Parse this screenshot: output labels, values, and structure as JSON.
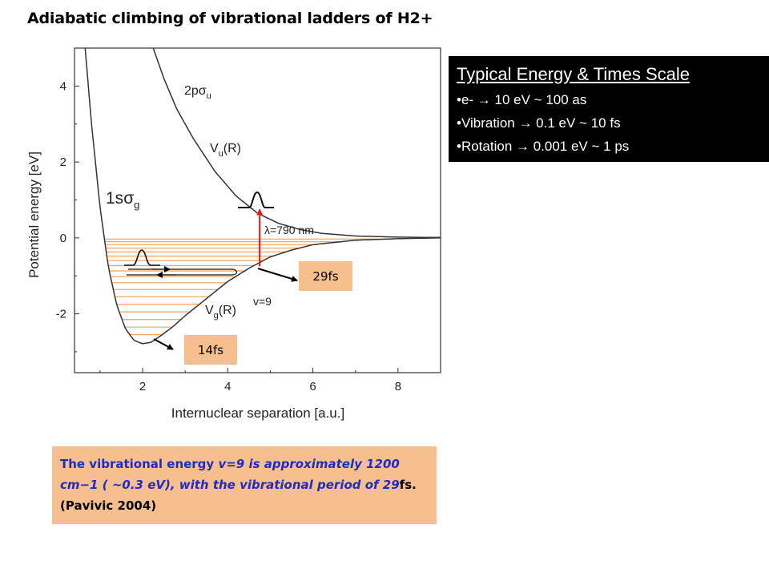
{
  "slide": {
    "title": "Adiabatic climbing of vibrational ladders of H2+"
  },
  "scale_box": {
    "heading": "Typical Energy & Times Scale",
    "items": [
      "•e-  → 10 eV ~ 100 as",
      "•Vibration  → 0.1 eV ~ 10 fs",
      "•Rotation  → 0.001 eV ~ 1 ps"
    ]
  },
  "tags": {
    "t29": "29fs",
    "t14": "14fs"
  },
  "note": {
    "p1": "The vibrational energy ",
    "p2": "v=9 is approximately 1200 cm−1 ( ~0.3 eV), with the vibrational period of 29",
    "p3": "fs. (Pavivic 2004)"
  },
  "chart_data": {
    "type": "line",
    "xlabel": "Internuclear separation [a.u.]",
    "ylabel": "Potential energy [eV]",
    "xlim": [
      0.4,
      9.0
    ],
    "ylim": [
      -3.55,
      5.0
    ],
    "x_ticks": [
      "2",
      "4",
      "6",
      "8"
    ],
    "y_ticks": [
      "-2",
      "0",
      "2",
      "4"
    ],
    "grid": false,
    "series": [
      {
        "name": "Vg(R)",
        "label_main": "V",
        "label_sub": "g",
        "label_tail": "(R)",
        "state_main": "1s",
        "state_sigma": "σ",
        "state_sub": "g",
        "color": "#333333",
        "points": [
          [
            0.65,
            5.0
          ],
          [
            0.8,
            3.0
          ],
          [
            1.0,
            0.8
          ],
          [
            1.2,
            -0.8
          ],
          [
            1.4,
            -1.8
          ],
          [
            1.6,
            -2.4
          ],
          [
            1.8,
            -2.7
          ],
          [
            2.0,
            -2.79
          ],
          [
            2.2,
            -2.75
          ],
          [
            2.4,
            -2.6
          ],
          [
            2.7,
            -2.35
          ],
          [
            3.0,
            -2.05
          ],
          [
            3.5,
            -1.6
          ],
          [
            4.0,
            -1.15
          ],
          [
            4.5,
            -0.8
          ],
          [
            5.0,
            -0.5
          ],
          [
            5.5,
            -0.32
          ],
          [
            6.0,
            -0.18
          ],
          [
            7.0,
            -0.06
          ],
          [
            8.0,
            -0.02
          ],
          [
            9.0,
            0.0
          ]
        ]
      },
      {
        "name": "Vu(R)",
        "label_main": "V",
        "label_sub": "u",
        "label_tail": "(R)",
        "state_main": "2p",
        "state_sigma": "σ",
        "state_sub": "u",
        "color": "#333333",
        "points": [
          [
            2.25,
            5.0
          ],
          [
            2.5,
            4.2
          ],
          [
            2.8,
            3.4
          ],
          [
            3.2,
            2.6
          ],
          [
            3.7,
            1.75
          ],
          [
            4.2,
            1.1
          ],
          [
            4.7,
            0.65
          ],
          [
            5.2,
            0.38
          ],
          [
            5.7,
            0.22
          ],
          [
            6.2,
            0.12
          ],
          [
            7.0,
            0.05
          ],
          [
            8.0,
            0.02
          ],
          [
            9.0,
            0.01
          ]
        ]
      }
    ],
    "vibrational_levels": {
      "energies": [
        -2.55,
        -2.35,
        -2.15,
        -1.95,
        -1.75,
        -1.55,
        -1.36,
        -1.18,
        -1.02,
        -0.87,
        -0.73,
        -0.6,
        -0.48,
        -0.37,
        -0.27,
        -0.18,
        -0.1,
        -0.03
      ],
      "color": "#f3a865"
    },
    "annotations": {
      "wavelength": "λ=790 nm",
      "level": "v=9",
      "excitation_energy_low": -0.75,
      "excitation_energy_high": 0.75,
      "excitation_x": 4.75
    }
  }
}
